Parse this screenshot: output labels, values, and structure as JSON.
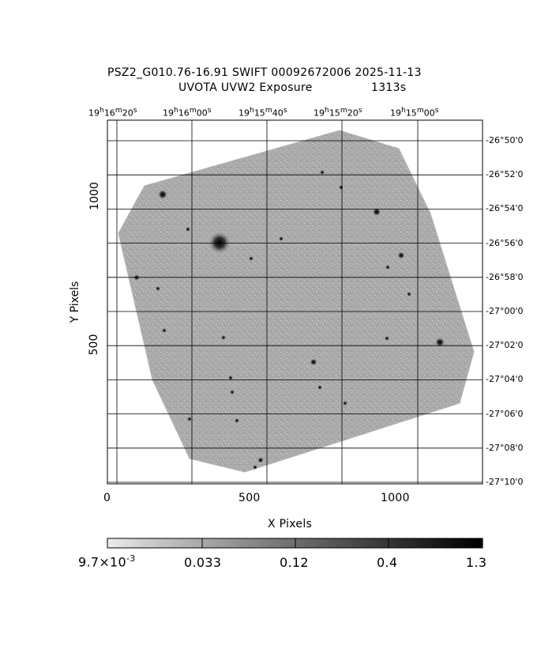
{
  "title": {
    "line1": "PSZ2_G010.76-16.91 SWIFT 00092672006 2025-11-13",
    "line2_left": "UVOTA UVW2 Exposure",
    "line2_right": "1313s"
  },
  "axes": {
    "xlabel": "X Pixels",
    "ylabel": "Y Pixels",
    "x_ticks": [
      "0",
      "500",
      "1000"
    ],
    "y_ticks": [
      "500",
      "1000"
    ],
    "ra_ticks": [
      {
        "h": "19",
        "m": "16",
        "s": "20"
      },
      {
        "h": "19",
        "m": "16",
        "s": "00"
      },
      {
        "h": "19",
        "m": "15",
        "s": "40"
      },
      {
        "h": "19",
        "m": "15",
        "s": "20"
      },
      {
        "h": "19",
        "m": "15",
        "s": "00"
      }
    ],
    "dec_ticks": [
      "-26°50'0",
      "-26°52'0",
      "-26°54'0",
      "-26°56'0",
      "-26°58'0",
      "-27°00'0",
      "-27°02'0",
      "-27°04'0",
      "-27°06'0",
      "-27°08'0",
      "-27°10'0"
    ]
  },
  "colorbar": {
    "labels": [
      "9.7×10",
      "0.033",
      "0.12",
      "0.4",
      "1.3"
    ],
    "exp": "-3"
  },
  "colors": {
    "background": "#ffffff",
    "ink": "#000000",
    "image_gray": "#a9a9a9"
  }
}
